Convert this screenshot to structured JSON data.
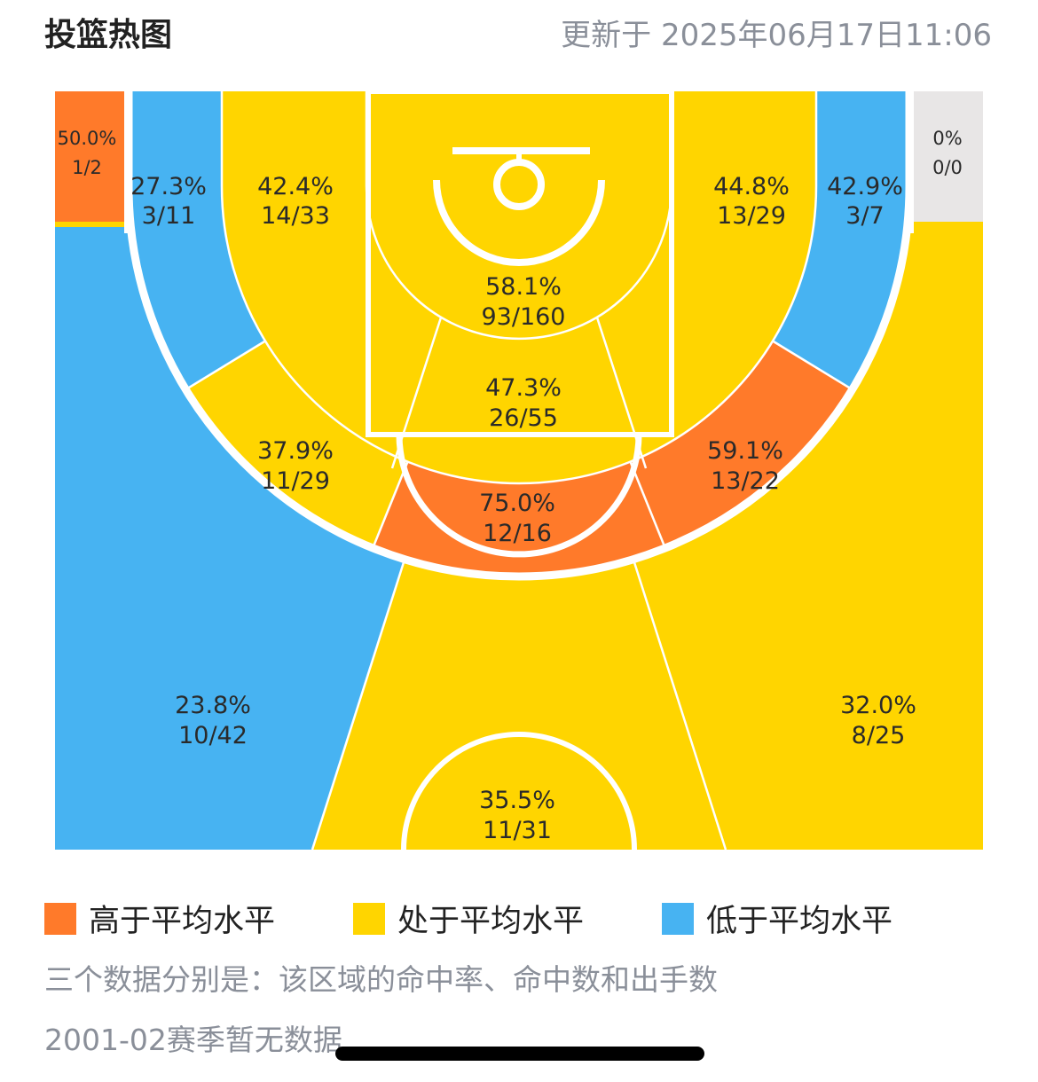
{
  "header": {
    "title": "投篮热图",
    "updated": "更新于 2025年06月17日11:06"
  },
  "colors": {
    "above": "#FF7A2A",
    "average": "#FFD500",
    "below": "#47B3F2",
    "none": "#E8E6E6",
    "line": "#FFFFFF"
  },
  "chart_data": {
    "type": "heatmap",
    "zones": [
      {
        "id": "left-corner-far",
        "pct": "50.0%",
        "made_att": "1/2",
        "level": "above"
      },
      {
        "id": "left-corner-three",
        "pct": "27.3%",
        "made_att": "3/11",
        "level": "below"
      },
      {
        "id": "left-baseline-mid",
        "pct": "42.4%",
        "made_att": "14/33",
        "level": "average"
      },
      {
        "id": "paint",
        "pct": "58.1%",
        "made_att": "93/160",
        "level": "average"
      },
      {
        "id": "right-baseline-mid",
        "pct": "44.8%",
        "made_att": "13/29",
        "level": "average"
      },
      {
        "id": "right-corner-three",
        "pct": "42.9%",
        "made_att": "3/7",
        "level": "below"
      },
      {
        "id": "right-corner-far",
        "pct": "0%",
        "made_att": "0/0",
        "level": "none"
      },
      {
        "id": "lane",
        "pct": "47.3%",
        "made_att": "26/55",
        "level": "average"
      },
      {
        "id": "left-wing-mid",
        "pct": "37.9%",
        "made_att": "11/29",
        "level": "average"
      },
      {
        "id": "right-wing-mid",
        "pct": "59.1%",
        "made_att": "13/22",
        "level": "above"
      },
      {
        "id": "top-key-mid",
        "pct": "75.0%",
        "made_att": "12/16",
        "level": "above"
      },
      {
        "id": "left-wing-three",
        "pct": "23.8%",
        "made_att": "10/42",
        "level": "below"
      },
      {
        "id": "right-wing-three",
        "pct": "32.0%",
        "made_att": "8/25",
        "level": "average"
      },
      {
        "id": "top-three",
        "pct": "35.5%",
        "made_att": "11/31",
        "level": "average"
      }
    ]
  },
  "legend": [
    {
      "label": "高于平均水平",
      "level": "above"
    },
    {
      "label": "处于平均水平",
      "level": "average"
    },
    {
      "label": "低于平均水平",
      "level": "below"
    }
  ],
  "notes": {
    "explanation": "三个数据分别是：该区域的命中率、命中数和出手数",
    "season": "2001-02赛季暂无数据"
  }
}
